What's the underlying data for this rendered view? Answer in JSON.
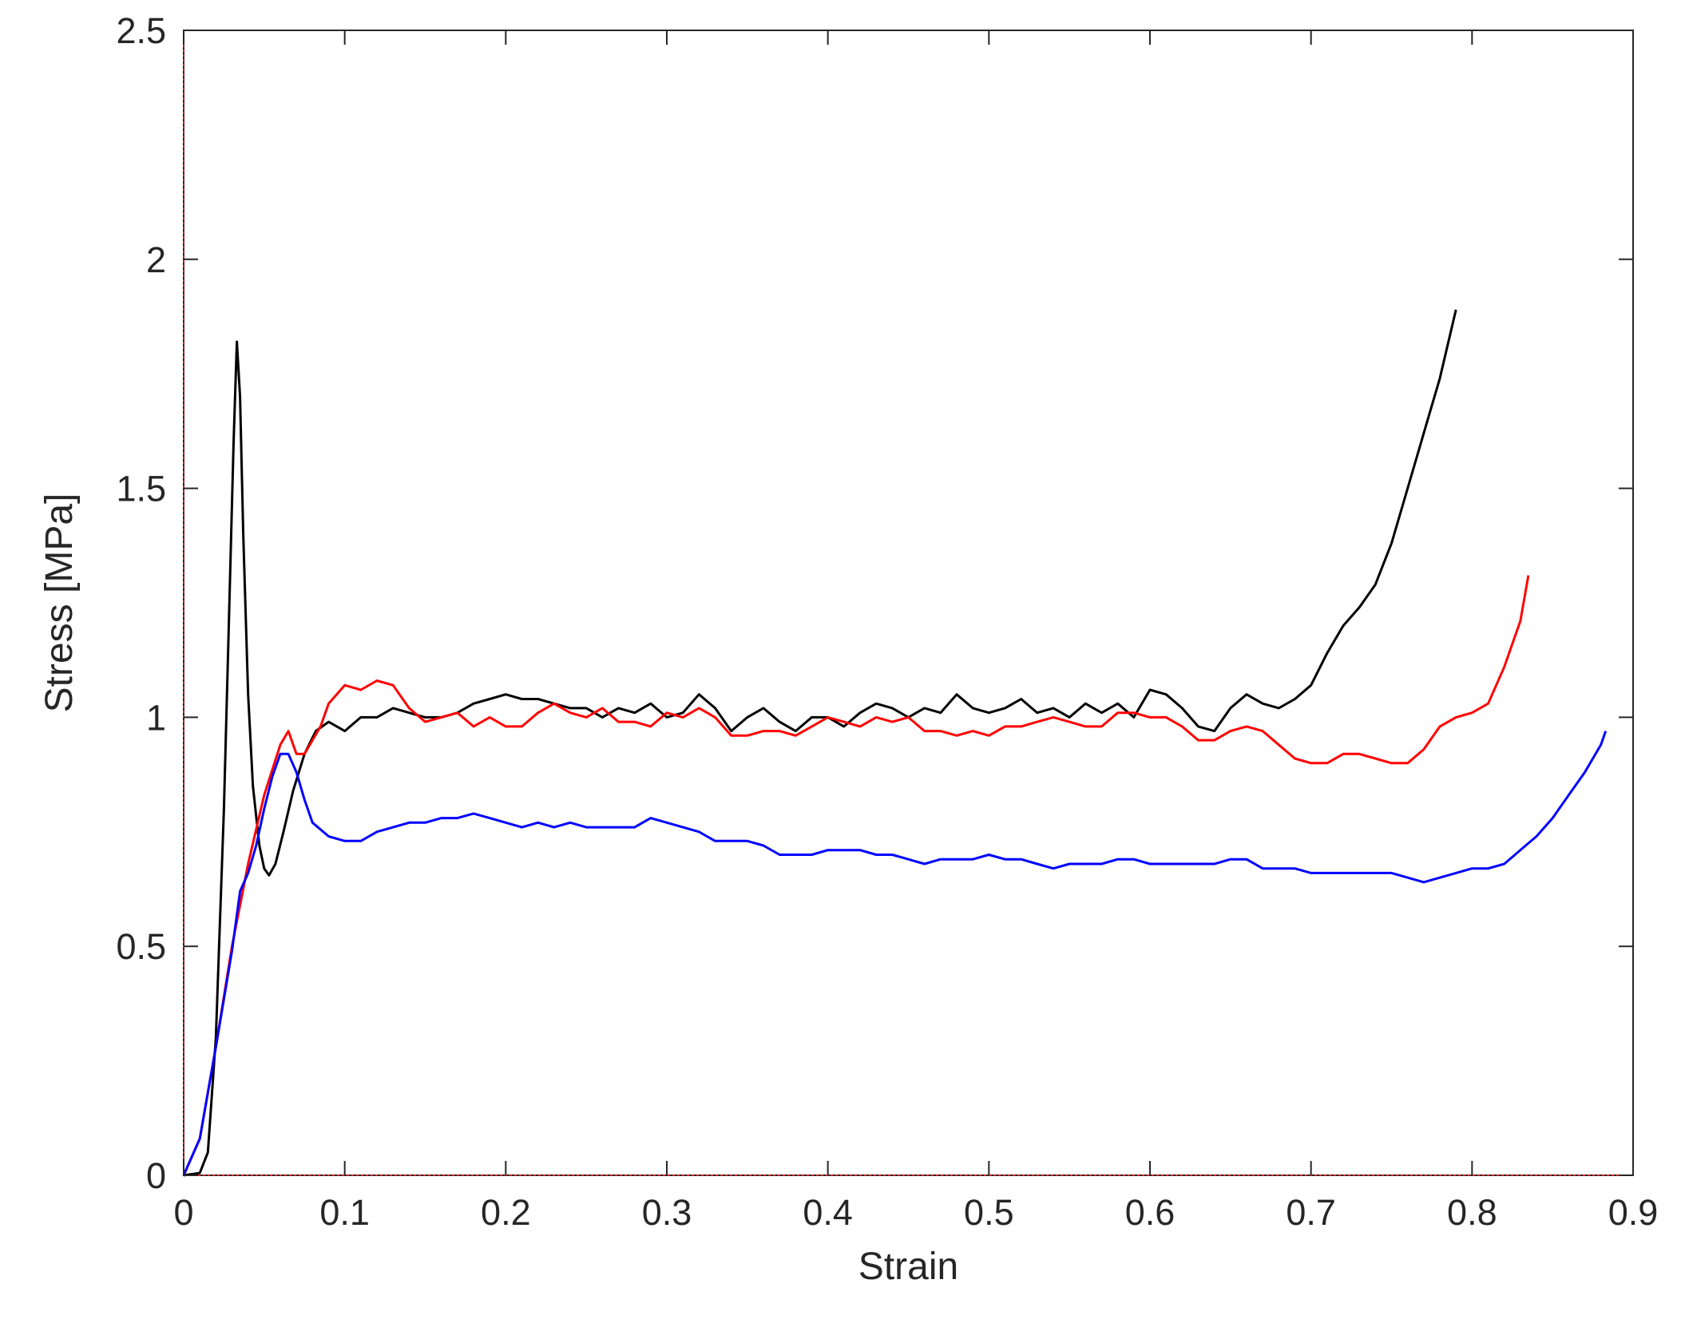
{
  "chart_data": {
    "type": "line",
    "title": "",
    "xlabel": "Strain",
    "ylabel": "Stress [MPa]",
    "xlim": [
      0,
      0.9
    ],
    "ylim": [
      0,
      2.5
    ],
    "xticks": [
      "0",
      "0.1",
      "0.2",
      "0.3",
      "0.4",
      "0.5",
      "0.6",
      "0.7",
      "0.8",
      "0.9"
    ],
    "yticks": [
      "0",
      "0.5",
      "1",
      "1.5",
      "2",
      "2.5"
    ],
    "grid": false,
    "legend": "none",
    "series": [
      {
        "color": "#000000",
        "points": [
          [
            0.0,
            0.0
          ],
          [
            0.01,
            0.005
          ],
          [
            0.015,
            0.05
          ],
          [
            0.02,
            0.3
          ],
          [
            0.025,
            0.8
          ],
          [
            0.028,
            1.2
          ],
          [
            0.031,
            1.6
          ],
          [
            0.033,
            1.82
          ],
          [
            0.035,
            1.7
          ],
          [
            0.037,
            1.4
          ],
          [
            0.04,
            1.05
          ],
          [
            0.043,
            0.85
          ],
          [
            0.047,
            0.72
          ],
          [
            0.05,
            0.67
          ],
          [
            0.053,
            0.655
          ],
          [
            0.057,
            0.68
          ],
          [
            0.062,
            0.75
          ],
          [
            0.068,
            0.84
          ],
          [
            0.075,
            0.92
          ],
          [
            0.082,
            0.97
          ],
          [
            0.09,
            0.99
          ],
          [
            0.1,
            0.97
          ],
          [
            0.11,
            1.0
          ],
          [
            0.12,
            1.0
          ],
          [
            0.13,
            1.02
          ],
          [
            0.14,
            1.01
          ],
          [
            0.15,
            1.0
          ],
          [
            0.16,
            1.0
          ],
          [
            0.17,
            1.01
          ],
          [
            0.18,
            1.03
          ],
          [
            0.19,
            1.04
          ],
          [
            0.2,
            1.05
          ],
          [
            0.21,
            1.04
          ],
          [
            0.22,
            1.04
          ],
          [
            0.23,
            1.03
          ],
          [
            0.24,
            1.02
          ],
          [
            0.25,
            1.02
          ],
          [
            0.26,
            1.0
          ],
          [
            0.27,
            1.02
          ],
          [
            0.28,
            1.01
          ],
          [
            0.29,
            1.03
          ],
          [
            0.3,
            1.0
          ],
          [
            0.31,
            1.01
          ],
          [
            0.32,
            1.05
          ],
          [
            0.33,
            1.02
          ],
          [
            0.34,
            0.97
          ],
          [
            0.35,
            1.0
          ],
          [
            0.36,
            1.02
          ],
          [
            0.37,
            0.99
          ],
          [
            0.38,
            0.97
          ],
          [
            0.39,
            1.0
          ],
          [
            0.4,
            1.0
          ],
          [
            0.41,
            0.98
          ],
          [
            0.42,
            1.01
          ],
          [
            0.43,
            1.03
          ],
          [
            0.44,
            1.02
          ],
          [
            0.45,
            1.0
          ],
          [
            0.46,
            1.02
          ],
          [
            0.47,
            1.01
          ],
          [
            0.48,
            1.05
          ],
          [
            0.49,
            1.02
          ],
          [
            0.5,
            1.01
          ],
          [
            0.51,
            1.02
          ],
          [
            0.52,
            1.04
          ],
          [
            0.53,
            1.01
          ],
          [
            0.54,
            1.02
          ],
          [
            0.55,
            1.0
          ],
          [
            0.56,
            1.03
          ],
          [
            0.57,
            1.01
          ],
          [
            0.58,
            1.03
          ],
          [
            0.59,
            1.0
          ],
          [
            0.6,
            1.06
          ],
          [
            0.61,
            1.05
          ],
          [
            0.62,
            1.02
          ],
          [
            0.63,
            0.98
          ],
          [
            0.64,
            0.97
          ],
          [
            0.65,
            1.02
          ],
          [
            0.66,
            1.05
          ],
          [
            0.67,
            1.03
          ],
          [
            0.68,
            1.02
          ],
          [
            0.69,
            1.04
          ],
          [
            0.7,
            1.07
          ],
          [
            0.71,
            1.14
          ],
          [
            0.72,
            1.2
          ],
          [
            0.73,
            1.24
          ],
          [
            0.74,
            1.29
          ],
          [
            0.75,
            1.38
          ],
          [
            0.76,
            1.5
          ],
          [
            0.77,
            1.62
          ],
          [
            0.78,
            1.74
          ],
          [
            0.79,
            1.89
          ]
        ]
      },
      {
        "color": "#ff0000",
        "points": [
          [
            0.0,
            0.0
          ],
          [
            0.01,
            0.08
          ],
          [
            0.02,
            0.28
          ],
          [
            0.03,
            0.5
          ],
          [
            0.04,
            0.68
          ],
          [
            0.05,
            0.83
          ],
          [
            0.06,
            0.94
          ],
          [
            0.065,
            0.97
          ],
          [
            0.07,
            0.92
          ],
          [
            0.075,
            0.92
          ],
          [
            0.08,
            0.95
          ],
          [
            0.085,
            0.98
          ],
          [
            0.09,
            1.03
          ],
          [
            0.1,
            1.07
          ],
          [
            0.11,
            1.06
          ],
          [
            0.12,
            1.08
          ],
          [
            0.13,
            1.07
          ],
          [
            0.14,
            1.02
          ],
          [
            0.15,
            0.99
          ],
          [
            0.16,
            1.0
          ],
          [
            0.17,
            1.01
          ],
          [
            0.18,
            0.98
          ],
          [
            0.19,
            1.0
          ],
          [
            0.2,
            0.98
          ],
          [
            0.21,
            0.98
          ],
          [
            0.22,
            1.01
          ],
          [
            0.23,
            1.03
          ],
          [
            0.24,
            1.01
          ],
          [
            0.25,
            1.0
          ],
          [
            0.26,
            1.02
          ],
          [
            0.27,
            0.99
          ],
          [
            0.28,
            0.99
          ],
          [
            0.29,
            0.98
          ],
          [
            0.3,
            1.01
          ],
          [
            0.31,
            1.0
          ],
          [
            0.32,
            1.02
          ],
          [
            0.33,
            1.0
          ],
          [
            0.34,
            0.96
          ],
          [
            0.35,
            0.96
          ],
          [
            0.36,
            0.97
          ],
          [
            0.37,
            0.97
          ],
          [
            0.38,
            0.96
          ],
          [
            0.39,
            0.98
          ],
          [
            0.4,
            1.0
          ],
          [
            0.41,
            0.99
          ],
          [
            0.42,
            0.98
          ],
          [
            0.43,
            1.0
          ],
          [
            0.44,
            0.99
          ],
          [
            0.45,
            1.0
          ],
          [
            0.46,
            0.97
          ],
          [
            0.47,
            0.97
          ],
          [
            0.48,
            0.96
          ],
          [
            0.49,
            0.97
          ],
          [
            0.5,
            0.96
          ],
          [
            0.51,
            0.98
          ],
          [
            0.52,
            0.98
          ],
          [
            0.53,
            0.99
          ],
          [
            0.54,
            1.0
          ],
          [
            0.55,
            0.99
          ],
          [
            0.56,
            0.98
          ],
          [
            0.57,
            0.98
          ],
          [
            0.58,
            1.01
          ],
          [
            0.59,
            1.01
          ],
          [
            0.6,
            1.0
          ],
          [
            0.61,
            1.0
          ],
          [
            0.62,
            0.98
          ],
          [
            0.63,
            0.95
          ],
          [
            0.64,
            0.95
          ],
          [
            0.65,
            0.97
          ],
          [
            0.66,
            0.98
          ],
          [
            0.67,
            0.97
          ],
          [
            0.68,
            0.94
          ],
          [
            0.69,
            0.91
          ],
          [
            0.7,
            0.9
          ],
          [
            0.71,
            0.9
          ],
          [
            0.72,
            0.92
          ],
          [
            0.73,
            0.92
          ],
          [
            0.74,
            0.91
          ],
          [
            0.75,
            0.9
          ],
          [
            0.76,
            0.9
          ],
          [
            0.77,
            0.93
          ],
          [
            0.78,
            0.98
          ],
          [
            0.79,
            1.0
          ],
          [
            0.8,
            1.01
          ],
          [
            0.81,
            1.03
          ],
          [
            0.82,
            1.11
          ],
          [
            0.83,
            1.21
          ],
          [
            0.835,
            1.31
          ]
        ]
      },
      {
        "color": "#0000ff",
        "points": [
          [
            0.0,
            0.0
          ],
          [
            0.01,
            0.08
          ],
          [
            0.02,
            0.28
          ],
          [
            0.03,
            0.49
          ],
          [
            0.035,
            0.62
          ],
          [
            0.04,
            0.66
          ],
          [
            0.045,
            0.72
          ],
          [
            0.05,
            0.8
          ],
          [
            0.055,
            0.87
          ],
          [
            0.06,
            0.92
          ],
          [
            0.065,
            0.92
          ],
          [
            0.07,
            0.88
          ],
          [
            0.075,
            0.82
          ],
          [
            0.08,
            0.77
          ],
          [
            0.09,
            0.74
          ],
          [
            0.1,
            0.73
          ],
          [
            0.11,
            0.73
          ],
          [
            0.12,
            0.75
          ],
          [
            0.13,
            0.76
          ],
          [
            0.14,
            0.77
          ],
          [
            0.15,
            0.77
          ],
          [
            0.16,
            0.78
          ],
          [
            0.17,
            0.78
          ],
          [
            0.18,
            0.79
          ],
          [
            0.19,
            0.78
          ],
          [
            0.2,
            0.77
          ],
          [
            0.21,
            0.76
          ],
          [
            0.22,
            0.77
          ],
          [
            0.23,
            0.76
          ],
          [
            0.24,
            0.77
          ],
          [
            0.25,
            0.76
          ],
          [
            0.26,
            0.76
          ],
          [
            0.27,
            0.76
          ],
          [
            0.28,
            0.76
          ],
          [
            0.29,
            0.78
          ],
          [
            0.3,
            0.77
          ],
          [
            0.31,
            0.76
          ],
          [
            0.32,
            0.75
          ],
          [
            0.33,
            0.73
          ],
          [
            0.34,
            0.73
          ],
          [
            0.35,
            0.73
          ],
          [
            0.36,
            0.72
          ],
          [
            0.37,
            0.7
          ],
          [
            0.38,
            0.7
          ],
          [
            0.39,
            0.7
          ],
          [
            0.4,
            0.71
          ],
          [
            0.41,
            0.71
          ],
          [
            0.42,
            0.71
          ],
          [
            0.43,
            0.7
          ],
          [
            0.44,
            0.7
          ],
          [
            0.45,
            0.69
          ],
          [
            0.46,
            0.68
          ],
          [
            0.47,
            0.69
          ],
          [
            0.48,
            0.69
          ],
          [
            0.49,
            0.69
          ],
          [
            0.5,
            0.7
          ],
          [
            0.51,
            0.69
          ],
          [
            0.52,
            0.69
          ],
          [
            0.53,
            0.68
          ],
          [
            0.54,
            0.67
          ],
          [
            0.55,
            0.68
          ],
          [
            0.56,
            0.68
          ],
          [
            0.57,
            0.68
          ],
          [
            0.58,
            0.69
          ],
          [
            0.59,
            0.69
          ],
          [
            0.6,
            0.68
          ],
          [
            0.61,
            0.68
          ],
          [
            0.62,
            0.68
          ],
          [
            0.63,
            0.68
          ],
          [
            0.64,
            0.68
          ],
          [
            0.65,
            0.69
          ],
          [
            0.66,
            0.69
          ],
          [
            0.67,
            0.67
          ],
          [
            0.68,
            0.67
          ],
          [
            0.69,
            0.67
          ],
          [
            0.7,
            0.66
          ],
          [
            0.71,
            0.66
          ],
          [
            0.72,
            0.66
          ],
          [
            0.73,
            0.66
          ],
          [
            0.74,
            0.66
          ],
          [
            0.75,
            0.66
          ],
          [
            0.76,
            0.65
          ],
          [
            0.77,
            0.64
          ],
          [
            0.78,
            0.65
          ],
          [
            0.79,
            0.66
          ],
          [
            0.8,
            0.67
          ],
          [
            0.81,
            0.67
          ],
          [
            0.82,
            0.68
          ],
          [
            0.83,
            0.71
          ],
          [
            0.84,
            0.74
          ],
          [
            0.85,
            0.78
          ],
          [
            0.86,
            0.83
          ],
          [
            0.87,
            0.88
          ],
          [
            0.88,
            0.94
          ],
          [
            0.883,
            0.97
          ]
        ]
      }
    ]
  }
}
